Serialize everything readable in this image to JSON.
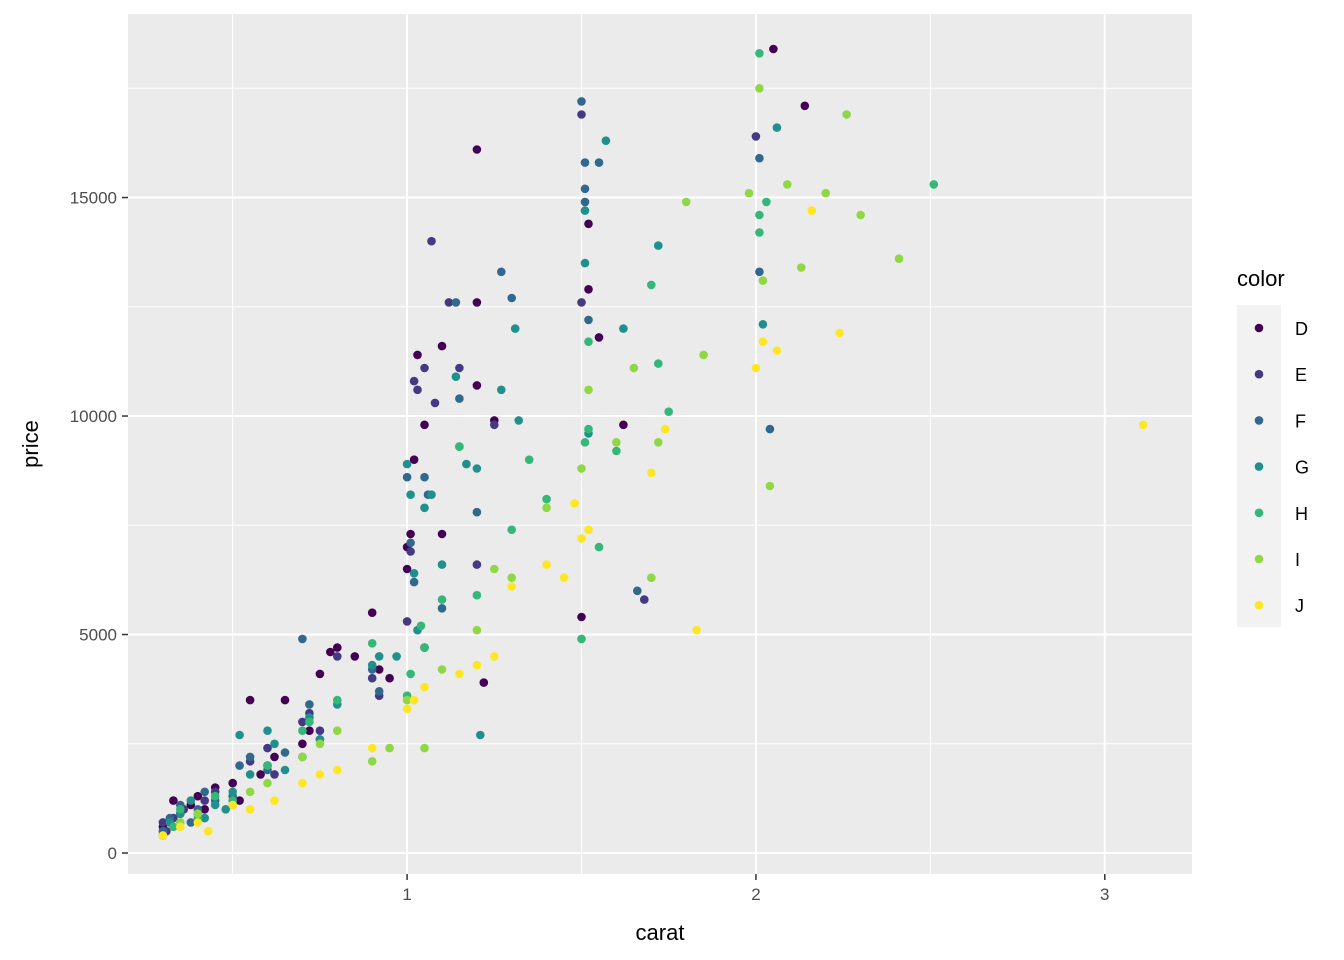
{
  "chart_data": {
    "type": "scatter",
    "title": "",
    "xlabel": "carat",
    "ylabel": "price",
    "xlim": [
      0.2,
      3.25
    ],
    "ylim": [
      -480,
      19200
    ],
    "x_ticks": [
      {
        "value": 1,
        "label": "1"
      },
      {
        "value": 2,
        "label": "2"
      },
      {
        "value": 3,
        "label": "3"
      }
    ],
    "y_ticks": [
      {
        "value": 0,
        "label": "0"
      },
      {
        "value": 5000,
        "label": "5000"
      },
      {
        "value": 10000,
        "label": "10000"
      },
      {
        "value": 15000,
        "label": "15000"
      }
    ],
    "grid": true,
    "background": "#ebebeb",
    "legend": {
      "title": "color",
      "position": "right",
      "entries": [
        {
          "label": "D",
          "color": "#440154"
        },
        {
          "label": "E",
          "color": "#443A83"
        },
        {
          "label": "F",
          "color": "#31688E"
        },
        {
          "label": "G",
          "color": "#21908C"
        },
        {
          "label": "H",
          "color": "#35B779"
        },
        {
          "label": "I",
          "color": "#8FD744"
        },
        {
          "label": "J",
          "color": "#FDE725"
        }
      ]
    },
    "series": [
      {
        "name": "D",
        "color": "#440154",
        "points": [
          [
            0.3,
            600
          ],
          [
            0.32,
            700
          ],
          [
            0.33,
            1200
          ],
          [
            0.35,
            900
          ],
          [
            0.38,
            1100
          ],
          [
            0.4,
            1300
          ],
          [
            0.42,
            1000
          ],
          [
            0.45,
            1500
          ],
          [
            0.5,
            1600
          ],
          [
            0.52,
            1200
          ],
          [
            0.55,
            3500
          ],
          [
            0.58,
            1800
          ],
          [
            0.6,
            2000
          ],
          [
            0.62,
            2200
          ],
          [
            0.65,
            3500
          ],
          [
            0.7,
            2500
          ],
          [
            0.72,
            2800
          ],
          [
            0.75,
            4100
          ],
          [
            0.78,
            4600
          ],
          [
            0.8,
            4700
          ],
          [
            0.85,
            4500
          ],
          [
            0.9,
            5500
          ],
          [
            0.92,
            4200
          ],
          [
            0.95,
            4000
          ],
          [
            1.0,
            6500
          ],
          [
            1.0,
            7000
          ],
          [
            1.01,
            7300
          ],
          [
            1.02,
            9000
          ],
          [
            1.03,
            11400
          ],
          [
            1.05,
            9800
          ],
          [
            1.05,
            4700
          ],
          [
            1.1,
            11600
          ],
          [
            1.1,
            7300
          ],
          [
            1.2,
            16100
          ],
          [
            1.2,
            12600
          ],
          [
            1.2,
            10700
          ],
          [
            1.22,
            3900
          ],
          [
            1.25,
            9900
          ],
          [
            1.5,
            5400
          ],
          [
            1.52,
            14400
          ],
          [
            1.52,
            12900
          ],
          [
            1.55,
            11800
          ],
          [
            1.62,
            9800
          ],
          [
            2.05,
            18400
          ],
          [
            2.14,
            17100
          ]
        ]
      },
      {
        "name": "E",
        "color": "#443A83",
        "points": [
          [
            0.3,
            700
          ],
          [
            0.31,
            500
          ],
          [
            0.33,
            800
          ],
          [
            0.36,
            1000
          ],
          [
            0.4,
            900
          ],
          [
            0.42,
            1200
          ],
          [
            0.45,
            1400
          ],
          [
            0.5,
            1100
          ],
          [
            0.55,
            2100
          ],
          [
            0.6,
            2400
          ],
          [
            0.62,
            1800
          ],
          [
            0.7,
            3000
          ],
          [
            0.72,
            3200
          ],
          [
            0.75,
            2800
          ],
          [
            0.8,
            4500
          ],
          [
            0.9,
            4000
          ],
          [
            0.92,
            3600
          ],
          [
            1.0,
            5300
          ],
          [
            1.01,
            6900
          ],
          [
            1.02,
            10800
          ],
          [
            1.03,
            10600
          ],
          [
            1.05,
            11100
          ],
          [
            1.07,
            14000
          ],
          [
            1.08,
            10300
          ],
          [
            1.12,
            12600
          ],
          [
            1.15,
            11100
          ],
          [
            1.2,
            6600
          ],
          [
            1.25,
            9800
          ],
          [
            1.5,
            16900
          ],
          [
            1.5,
            12600
          ],
          [
            1.68,
            5800
          ],
          [
            2.0,
            16400
          ]
        ]
      },
      {
        "name": "F",
        "color": "#31688E",
        "points": [
          [
            0.3,
            500
          ],
          [
            0.32,
            800
          ],
          [
            0.35,
            1100
          ],
          [
            0.38,
            700
          ],
          [
            0.4,
            1000
          ],
          [
            0.42,
            1400
          ],
          [
            0.45,
            1200
          ],
          [
            0.5,
            1300
          ],
          [
            0.52,
            2000
          ],
          [
            0.55,
            2200
          ],
          [
            0.6,
            1900
          ],
          [
            0.65,
            2300
          ],
          [
            0.7,
            4900
          ],
          [
            0.72,
            3400
          ],
          [
            0.75,
            2600
          ],
          [
            0.9,
            4200
          ],
          [
            0.92,
            3700
          ],
          [
            1.0,
            8600
          ],
          [
            1.01,
            7100
          ],
          [
            1.02,
            6200
          ],
          [
            1.05,
            8600
          ],
          [
            1.06,
            8200
          ],
          [
            1.1,
            5600
          ],
          [
            1.14,
            12600
          ],
          [
            1.15,
            10400
          ],
          [
            1.2,
            7800
          ],
          [
            1.27,
            13300
          ],
          [
            1.3,
            12700
          ],
          [
            1.5,
            17200
          ],
          [
            1.51,
            15800
          ],
          [
            1.51,
            14900
          ],
          [
            1.51,
            15200
          ],
          [
            1.52,
            12200
          ],
          [
            1.55,
            15800
          ],
          [
            1.66,
            6000
          ],
          [
            2.01,
            13300
          ],
          [
            2.01,
            15900
          ],
          [
            2.04,
            9700
          ]
        ]
      },
      {
        "name": "G",
        "color": "#21908C",
        "points": [
          [
            0.3,
            400
          ],
          [
            0.32,
            700
          ],
          [
            0.35,
            900
          ],
          [
            0.38,
            1200
          ],
          [
            0.42,
            800
          ],
          [
            0.45,
            1100
          ],
          [
            0.48,
            1000
          ],
          [
            0.5,
            1400
          ],
          [
            0.52,
            2700
          ],
          [
            0.55,
            1800
          ],
          [
            0.6,
            2800
          ],
          [
            0.62,
            2500
          ],
          [
            0.65,
            1900
          ],
          [
            0.7,
            2200
          ],
          [
            0.72,
            3100
          ],
          [
            0.75,
            2600
          ],
          [
            0.8,
            3400
          ],
          [
            0.9,
            4300
          ],
          [
            0.92,
            4500
          ],
          [
            0.97,
            4500
          ],
          [
            1.0,
            8900
          ],
          [
            1.01,
            8200
          ],
          [
            1.02,
            6400
          ],
          [
            1.03,
            5100
          ],
          [
            1.05,
            7900
          ],
          [
            1.07,
            8200
          ],
          [
            1.1,
            6600
          ],
          [
            1.14,
            10900
          ],
          [
            1.15,
            9300
          ],
          [
            1.17,
            8900
          ],
          [
            1.2,
            8800
          ],
          [
            1.21,
            2700
          ],
          [
            1.27,
            10600
          ],
          [
            1.31,
            12000
          ],
          [
            1.32,
            9900
          ],
          [
            1.51,
            14700
          ],
          [
            1.51,
            13500
          ],
          [
            1.52,
            9600
          ],
          [
            1.57,
            16300
          ],
          [
            1.62,
            12000
          ],
          [
            1.72,
            13900
          ],
          [
            2.02,
            12100
          ],
          [
            2.06,
            16600
          ]
        ]
      },
      {
        "name": "H",
        "color": "#35B779",
        "points": [
          [
            0.3,
            400
          ],
          [
            0.33,
            600
          ],
          [
            0.35,
            1000
          ],
          [
            0.4,
            800
          ],
          [
            0.45,
            1300
          ],
          [
            0.5,
            1200
          ],
          [
            0.6,
            2000
          ],
          [
            0.7,
            2800
          ],
          [
            0.72,
            3000
          ],
          [
            0.8,
            3500
          ],
          [
            0.9,
            4800
          ],
          [
            1.0,
            3600
          ],
          [
            1.01,
            4100
          ],
          [
            1.04,
            5200
          ],
          [
            1.05,
            4700
          ],
          [
            1.1,
            5800
          ],
          [
            1.15,
            9300
          ],
          [
            1.2,
            5900
          ],
          [
            1.3,
            7400
          ],
          [
            1.35,
            9000
          ],
          [
            1.4,
            8100
          ],
          [
            1.5,
            4900
          ],
          [
            1.51,
            9400
          ],
          [
            1.52,
            9700
          ],
          [
            1.52,
            11700
          ],
          [
            1.55,
            7000
          ],
          [
            1.6,
            9200
          ],
          [
            1.7,
            13000
          ],
          [
            1.72,
            11200
          ],
          [
            1.75,
            10100
          ],
          [
            2.01,
            18300
          ],
          [
            2.01,
            14600
          ],
          [
            2.01,
            14200
          ],
          [
            2.03,
            14900
          ],
          [
            2.51,
            15300
          ]
        ]
      },
      {
        "name": "I",
        "color": "#8FD744",
        "points": [
          [
            0.3,
            400
          ],
          [
            0.35,
            700
          ],
          [
            0.4,
            900
          ],
          [
            0.5,
            1100
          ],
          [
            0.55,
            1400
          ],
          [
            0.6,
            1600
          ],
          [
            0.7,
            2200
          ],
          [
            0.75,
            2500
          ],
          [
            0.8,
            2800
          ],
          [
            0.9,
            2100
          ],
          [
            0.95,
            2400
          ],
          [
            1.0,
            3500
          ],
          [
            1.05,
            2400
          ],
          [
            1.1,
            4200
          ],
          [
            1.2,
            5100
          ],
          [
            1.25,
            6500
          ],
          [
            1.3,
            6300
          ],
          [
            1.4,
            7900
          ],
          [
            1.5,
            8800
          ],
          [
            1.52,
            10600
          ],
          [
            1.6,
            9400
          ],
          [
            1.65,
            11100
          ],
          [
            1.7,
            6300
          ],
          [
            1.72,
            9400
          ],
          [
            1.8,
            14900
          ],
          [
            1.85,
            11400
          ],
          [
            1.98,
            15100
          ],
          [
            2.01,
            17500
          ],
          [
            2.02,
            13100
          ],
          [
            2.04,
            8400
          ],
          [
            2.09,
            15300
          ],
          [
            2.13,
            13400
          ],
          [
            2.2,
            15100
          ],
          [
            2.26,
            16900
          ],
          [
            2.3,
            14600
          ],
          [
            2.41,
            13600
          ]
        ]
      },
      {
        "name": "J",
        "color": "#FDE725",
        "points": [
          [
            0.3,
            400
          ],
          [
            0.35,
            600
          ],
          [
            0.4,
            700
          ],
          [
            0.43,
            500
          ],
          [
            0.5,
            1100
          ],
          [
            0.55,
            1000
          ],
          [
            0.62,
            1200
          ],
          [
            0.7,
            1600
          ],
          [
            0.75,
            1800
          ],
          [
            0.8,
            1900
          ],
          [
            0.9,
            2400
          ],
          [
            1.0,
            3300
          ],
          [
            1.02,
            3500
          ],
          [
            1.05,
            3800
          ],
          [
            1.15,
            4100
          ],
          [
            1.2,
            4300
          ],
          [
            1.25,
            4500
          ],
          [
            1.3,
            6100
          ],
          [
            1.4,
            6600
          ],
          [
            1.45,
            6300
          ],
          [
            1.48,
            8000
          ],
          [
            1.5,
            7200
          ],
          [
            1.52,
            7400
          ],
          [
            1.7,
            8700
          ],
          [
            1.74,
            9700
          ],
          [
            1.83,
            5100
          ],
          [
            2.0,
            11100
          ],
          [
            2.02,
            11700
          ],
          [
            2.06,
            11500
          ],
          [
            2.16,
            14700
          ],
          [
            2.24,
            11900
          ],
          [
            3.11,
            9800
          ]
        ]
      }
    ]
  }
}
